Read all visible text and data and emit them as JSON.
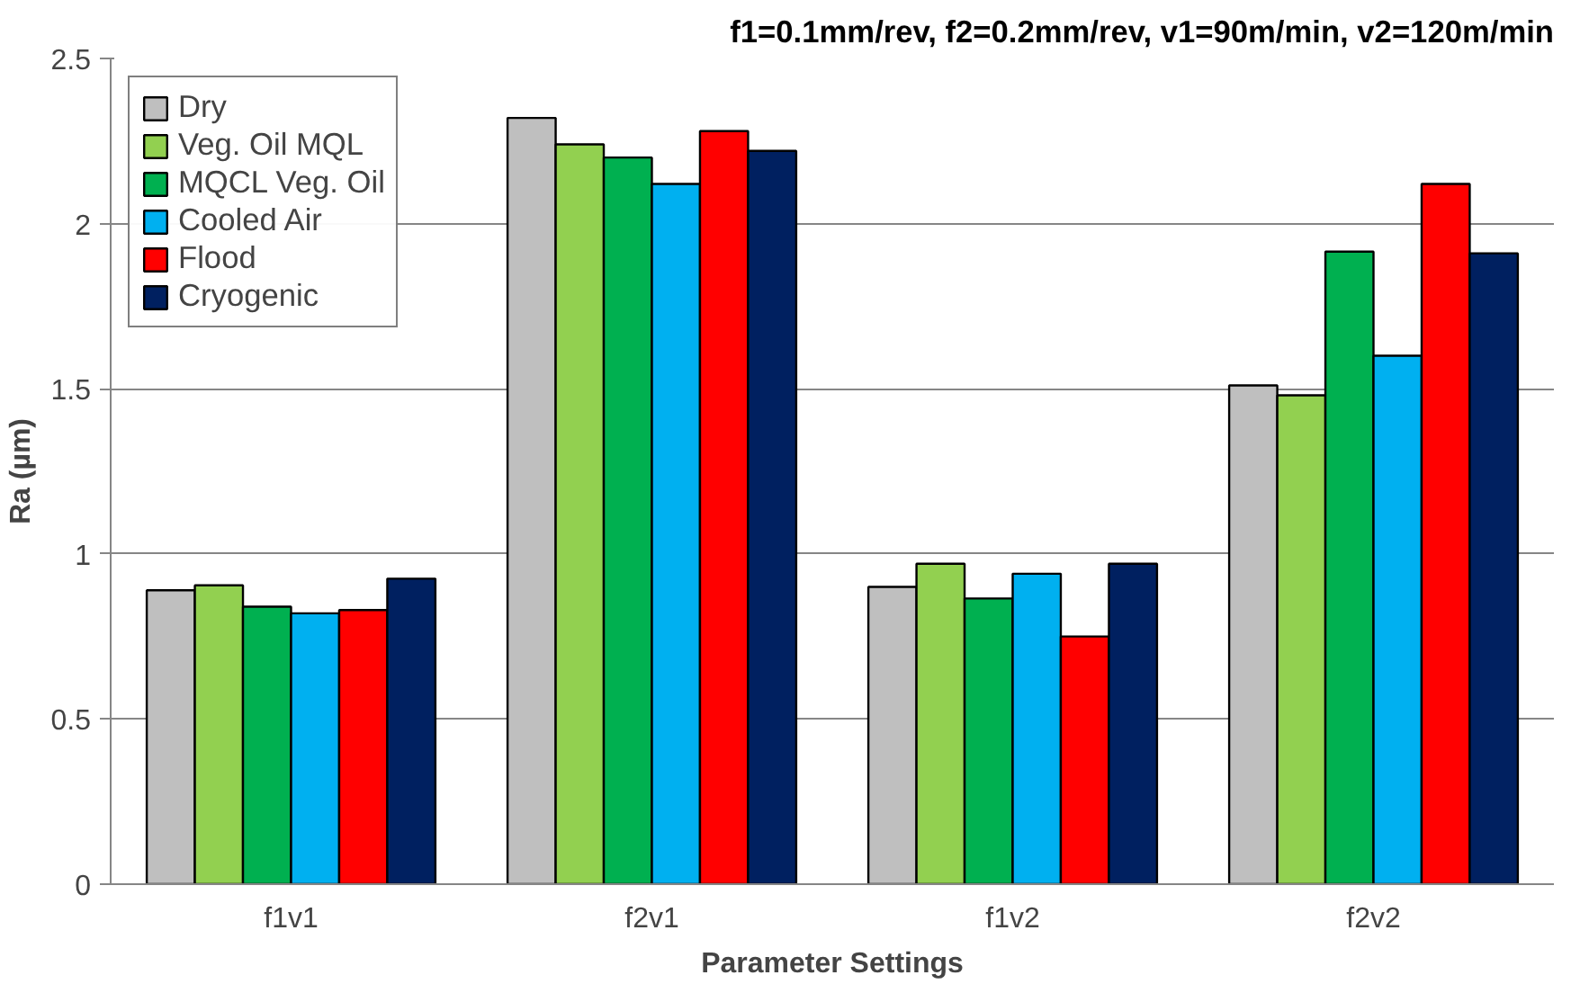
{
  "chart_data": {
    "type": "bar",
    "title": "f1=0.1mm/rev, f2=0.2mm/rev, v1=90m/min, v2=120m/min",
    "xlabel": "Parameter Settings",
    "ylabel": "Ra (µm)",
    "categories": [
      "f1v1",
      "f2v1",
      "f1v2",
      "f2v2"
    ],
    "series": [
      {
        "name": "Dry",
        "color": "#bfbfbf",
        "values": [
          0.89,
          2.32,
          0.9,
          1.51
        ]
      },
      {
        "name": "Veg. Oil MQL",
        "color": "#92d050",
        "values": [
          0.905,
          2.24,
          0.97,
          1.48
        ]
      },
      {
        "name": "MQCL Veg. Oil",
        "color": "#00b050",
        "values": [
          0.84,
          2.2,
          0.865,
          1.915
        ]
      },
      {
        "name": "Cooled Air",
        "color": "#00b0f0",
        "values": [
          0.82,
          2.12,
          0.94,
          1.6
        ]
      },
      {
        "name": "Flood",
        "color": "#ff0000",
        "values": [
          0.83,
          2.28,
          0.75,
          2.12
        ]
      },
      {
        "name": "Cryogenic",
        "color": "#002060",
        "values": [
          0.925,
          2.22,
          0.97,
          1.91
        ]
      }
    ],
    "ylim": [
      0,
      2.5
    ],
    "yticks": [
      0,
      0.5,
      1,
      1.5,
      2,
      2.5
    ],
    "grid": "y",
    "legend": "top left"
  }
}
